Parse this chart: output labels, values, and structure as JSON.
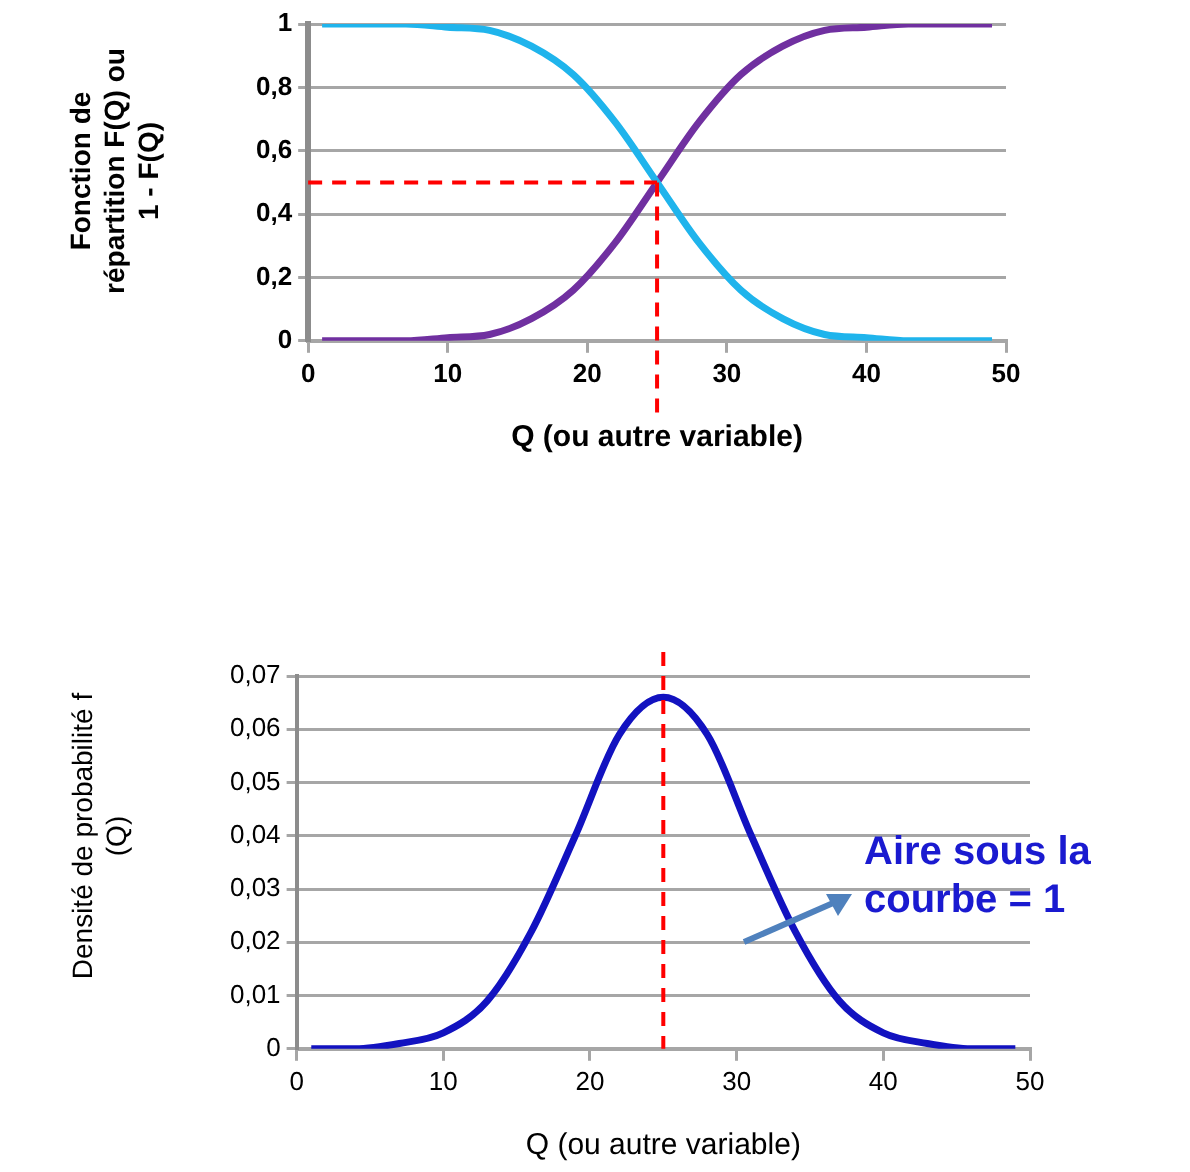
{
  "chart_data": [
    {
      "type": "line",
      "xlabel": "Q (ou autre variable)",
      "ylabel": "Fonction de répartition F(Q) ou 1 - F(Q)",
      "x": [
        1,
        4,
        7,
        10,
        13,
        16,
        19,
        22,
        25,
        28,
        31,
        34,
        37,
        40,
        43,
        46,
        49
      ],
      "series": [
        {
          "color": "#1fb4ec",
          "values": [
            1,
            1,
            1,
            0.99,
            0.98,
            0.93,
            0.84,
            0.69,
            0.5,
            0.31,
            0.16,
            0.07,
            0.02,
            0.01,
            0,
            0,
            0
          ]
        },
        {
          "color": "#7030a0",
          "values": [
            0,
            0,
            0,
            0.01,
            0.02,
            0.07,
            0.16,
            0.31,
            0.5,
            0.69,
            0.84,
            0.93,
            0.98,
            0.99,
            1,
            1,
            1
          ]
        }
      ],
      "xlim": [
        0,
        50
      ],
      "xticks": [
        0,
        10,
        20,
        30,
        40,
        50
      ],
      "ylim": [
        0,
        1
      ],
      "yticks": [
        {
          "value": 0,
          "label": "0"
        },
        {
          "value": 0.2,
          "label": "0,2"
        },
        {
          "value": 0.4,
          "label": "0,4"
        },
        {
          "value": 0.6,
          "label": "0,6"
        },
        {
          "value": 0.8,
          "label": "0,8"
        },
        {
          "value": 1,
          "label": "1"
        }
      ],
      "grid": "y",
      "marker": "none",
      "line_style": "solid",
      "ref_lines": [
        {
          "axis": "y",
          "value": 0.5,
          "color": "#ff0000",
          "line_style": "dashed"
        },
        {
          "axis": "x",
          "value": 25,
          "color": "#ff0000",
          "line_style": "dashed"
        }
      ]
    },
    {
      "type": "line",
      "xlabel": "Q (ou autre variable)",
      "ylabel": "Densité de probabilité f (Q)",
      "x": [
        1,
        4,
        7,
        10,
        13,
        16,
        19,
        22,
        25,
        28,
        31,
        34,
        37,
        40,
        43,
        46,
        49
      ],
      "series": [
        {
          "color": "#1212c0",
          "values": [
            0,
            0,
            0.001,
            0.003,
            0.009,
            0.022,
            0.04,
            0.059,
            0.066,
            0.059,
            0.04,
            0.022,
            0.009,
            0.003,
            0.001,
            0,
            0
          ]
        }
      ],
      "xlim": [
        0,
        50
      ],
      "xticks": [
        0,
        10,
        20,
        30,
        40,
        50
      ],
      "ylim": [
        0,
        0.07
      ],
      "yticks": [
        {
          "value": 0,
          "label": "0"
        },
        {
          "value": 0.01,
          "label": "0,01"
        },
        {
          "value": 0.02,
          "label": "0,02"
        },
        {
          "value": 0.03,
          "label": "0,03"
        },
        {
          "value": 0.04,
          "label": "0,04"
        },
        {
          "value": 0.05,
          "label": "0,05"
        },
        {
          "value": 0.06,
          "label": "0,06"
        },
        {
          "value": 0.07,
          "label": "0,07"
        }
      ],
      "grid": "y",
      "marker": "none",
      "line_style": "solid",
      "ref_lines": [
        {
          "axis": "x",
          "value": 25,
          "color": "#ff0000",
          "line_style": "dashed"
        }
      ],
      "annotations": [
        "Aire sous la courbe = 1"
      ]
    }
  ]
}
